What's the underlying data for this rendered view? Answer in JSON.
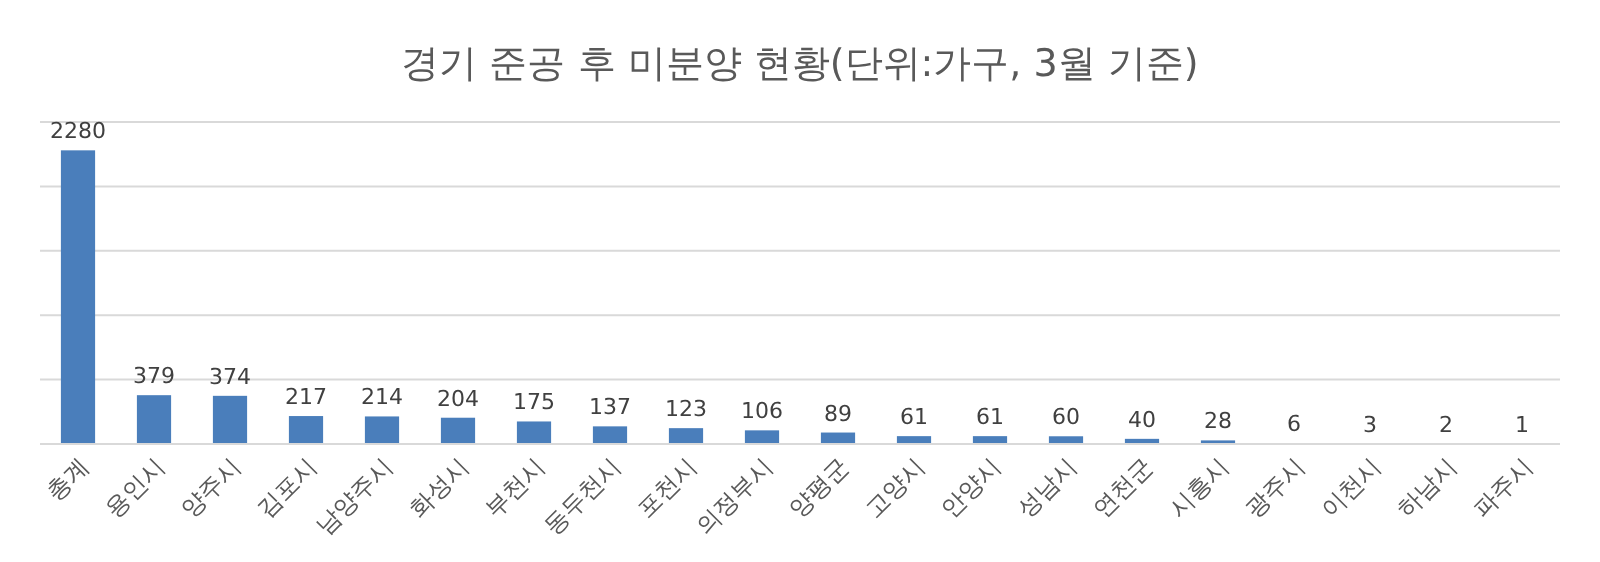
{
  "chart_data": {
    "type": "bar",
    "title": "경기 준공 후 미분양 현황(단위:가구, 3월 기준)",
    "categories": [
      "총계",
      "용인시",
      "양주시",
      "김포시",
      "남양주시",
      "화성시",
      "부천시",
      "동두천시",
      "포천시",
      "의정부시",
      "양평군",
      "고양시",
      "안양시",
      "성남시",
      "연천군",
      "시흥시",
      "광주시",
      "이천시",
      "하남시",
      "파주시"
    ],
    "values": [
      2280,
      379,
      374,
      217,
      214,
      204,
      175,
      137,
      123,
      106,
      89,
      61,
      61,
      60,
      40,
      28,
      6,
      3,
      2,
      1
    ],
    "color": "#4a7ebb",
    "ylim": [
      0,
      2500
    ],
    "yticks": [
      {
        "value": 0,
        "label": null
      },
      {
        "value": 500,
        "label": null
      },
      {
        "value": 1000,
        "label": null
      },
      {
        "value": 1500,
        "label": null
      },
      {
        "value": 2000,
        "label": null
      },
      {
        "value": 2500,
        "label": null
      }
    ],
    "grid": "y",
    "data_labels": true
  }
}
